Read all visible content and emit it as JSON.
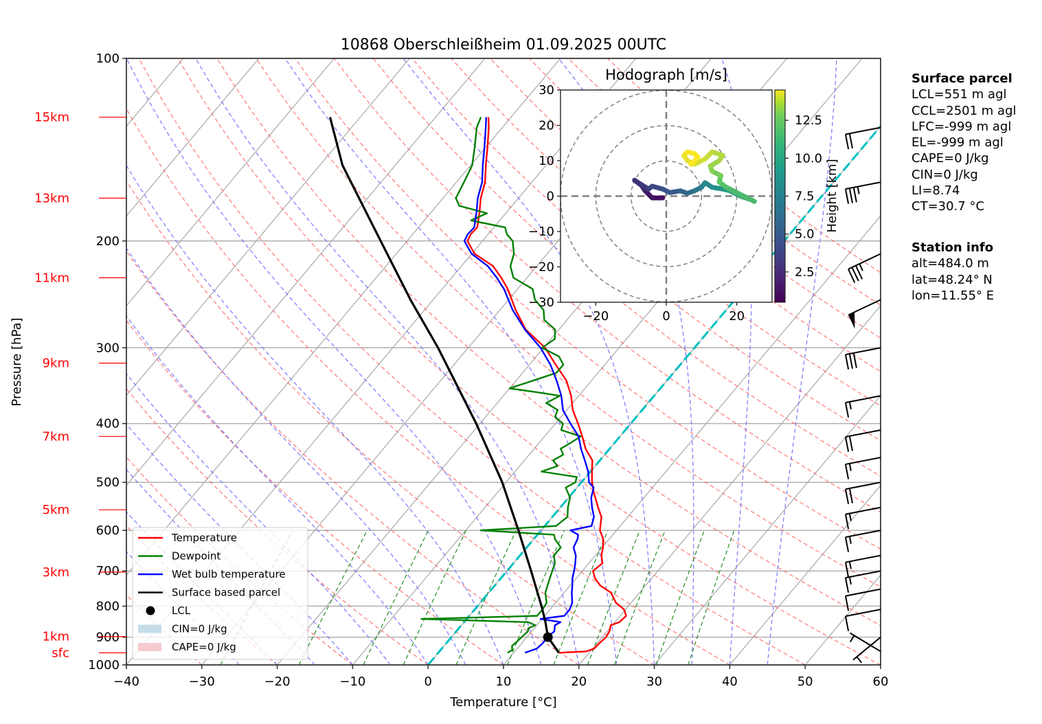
{
  "chart_data": {
    "type": "line",
    "subtype": "skew-t log-p diagram",
    "title": "10868 Oberschleißheim 01.09.2025 00UTC",
    "xlabel": "Temperature [°C]",
    "ylabel": "Pressure [hPa]",
    "xlim": [
      -40,
      60
    ],
    "ylim_hpa": [
      1000,
      100
    ],
    "x_ticks": [
      -40,
      -30,
      -20,
      -10,
      0,
      10,
      20,
      30,
      40,
      50,
      60
    ],
    "x_tick_labels": [
      "−40",
      "−30",
      "−20",
      "−10",
      "0",
      "10",
      "20",
      "30",
      "40",
      "50",
      "60"
    ],
    "y_ticks": [
      100,
      200,
      300,
      400,
      500,
      600,
      700,
      800,
      900,
      1000
    ],
    "y_tick_labels": [
      "100",
      "200",
      "300",
      "400",
      "500",
      "600",
      "700",
      "800",
      "900",
      "1000"
    ],
    "grid": true,
    "height_markers": [
      {
        "label": "15km",
        "p": 125
      },
      {
        "label": "13km",
        "p": 170
      },
      {
        "label": "11km",
        "p": 230
      },
      {
        "label": "9km",
        "p": 318
      },
      {
        "label": "7km",
        "p": 420
      },
      {
        "label": "5km",
        "p": 555
      },
      {
        "label": "3km",
        "p": 703
      },
      {
        "label": "1km",
        "p": 898
      },
      {
        "label": "sfc",
        "p": 955
      }
    ],
    "legend_position": "lower-left",
    "legend": [
      {
        "label": "Temperature",
        "kind": "line",
        "color": "#ff0000"
      },
      {
        "label": "Dewpoint",
        "kind": "line",
        "color": "#008000"
      },
      {
        "label": "Wet bulb temperature",
        "kind": "line",
        "color": "#0000ff"
      },
      {
        "label": "Surface based parcel",
        "kind": "line",
        "color": "#000000"
      },
      {
        "label": "LCL",
        "kind": "marker",
        "color": "#000000"
      },
      {
        "label": "CIN=0 J/kg",
        "kind": "patch",
        "color": "#c6dbe8"
      },
      {
        "label": "CAPE=0 J/kg",
        "kind": "patch",
        "color": "#f4cccf"
      }
    ],
    "series": [
      {
        "name": "Temperature",
        "color": "#ff0000",
        "points": [
          [
            955,
            16.0
          ],
          [
            950,
            19.5
          ],
          [
            940,
            20.2
          ],
          [
            920,
            20.3
          ],
          [
            900,
            20.5
          ],
          [
            880,
            20.3
          ],
          [
            860,
            19.8
          ],
          [
            850,
            20.6
          ],
          [
            830,
            20.8
          ],
          [
            810,
            19.8
          ],
          [
            790,
            18.0
          ],
          [
            760,
            16.2
          ],
          [
            740,
            14.0
          ],
          [
            720,
            12.5
          ],
          [
            700,
            11.4
          ],
          [
            680,
            11.8
          ],
          [
            660,
            10.8
          ],
          [
            640,
            10.1
          ],
          [
            620,
            9.2
          ],
          [
            600,
            7.8
          ],
          [
            570,
            6.5
          ],
          [
            550,
            5.0
          ],
          [
            520,
            2.8
          ],
          [
            500,
            1.4
          ],
          [
            480,
            0.2
          ],
          [
            460,
            -1.0
          ],
          [
            440,
            -3.2
          ],
          [
            420,
            -5.0
          ],
          [
            400,
            -7.0
          ],
          [
            380,
            -9.2
          ],
          [
            360,
            -11.0
          ],
          [
            340,
            -13.3
          ],
          [
            320,
            -16.5
          ],
          [
            300,
            -19.8
          ],
          [
            280,
            -24.4
          ],
          [
            260,
            -27.9
          ],
          [
            240,
            -31.3
          ],
          [
            230,
            -33.4
          ],
          [
            220,
            -35.8
          ],
          [
            210,
            -39.6
          ],
          [
            205,
            -40.8
          ],
          [
            200,
            -42.0
          ],
          [
            195,
            -42.3
          ],
          [
            190,
            -42.2
          ],
          [
            180,
            -43.5
          ],
          [
            170,
            -45.0
          ],
          [
            160,
            -46.2
          ],
          [
            150,
            -48.0
          ],
          [
            140,
            -49.8
          ],
          [
            130,
            -51.8
          ],
          [
            125,
            -53.0
          ]
        ]
      },
      {
        "name": "Dewpoint",
        "color": "#008000",
        "points": [
          [
            955,
            9.2
          ],
          [
            945,
            9.5
          ],
          [
            930,
            9.0
          ],
          [
            915,
            9.2
          ],
          [
            900,
            9.3
          ],
          [
            880,
            9.5
          ],
          [
            870,
            9.2
          ],
          [
            860,
            9.8
          ],
          [
            850,
            8.5
          ],
          [
            840,
            -6.0
          ],
          [
            830,
            9.0
          ],
          [
            810,
            9.0
          ],
          [
            790,
            8.8
          ],
          [
            760,
            7.5
          ],
          [
            740,
            7.0
          ],
          [
            720,
            6.5
          ],
          [
            700,
            6.0
          ],
          [
            680,
            5.5
          ],
          [
            660,
            4.5
          ],
          [
            640,
            4.5
          ],
          [
            620,
            2.8
          ],
          [
            610,
            2.2
          ],
          [
            600,
            -8.0
          ],
          [
            590,
            1.5
          ],
          [
            570,
            2.0
          ],
          [
            550,
            1.0
          ],
          [
            530,
            0.2
          ],
          [
            510,
            -1.5
          ],
          [
            500,
            -0.8
          ],
          [
            490,
            -1.2
          ],
          [
            480,
            -6.5
          ],
          [
            470,
            -5.0
          ],
          [
            460,
            -6.2
          ],
          [
            450,
            -5.5
          ],
          [
            440,
            -6.5
          ],
          [
            430,
            -5.8
          ],
          [
            420,
            -5.2
          ],
          [
            410,
            -8.5
          ],
          [
            400,
            -9.0
          ],
          [
            390,
            -10.8
          ],
          [
            380,
            -11.2
          ],
          [
            370,
            -13.5
          ],
          [
            360,
            -12.5
          ],
          [
            355,
            -16.0
          ],
          [
            350,
            -20.0
          ],
          [
            340,
            -17.8
          ],
          [
            330,
            -15.5
          ],
          [
            320,
            -15.5
          ],
          [
            310,
            -17.0
          ],
          [
            300,
            -20.2
          ],
          [
            290,
            -19.5
          ],
          [
            280,
            -20.5
          ],
          [
            270,
            -23.0
          ],
          [
            260,
            -24.2
          ],
          [
            250,
            -26.5
          ],
          [
            240,
            -28.0
          ],
          [
            230,
            -31.8
          ],
          [
            220,
            -33.5
          ],
          [
            210,
            -34.4
          ],
          [
            200,
            -36.0
          ],
          [
            195,
            -37.5
          ],
          [
            190,
            -38.5
          ],
          [
            185,
            -43.8
          ],
          [
            180,
            -42.5
          ],
          [
            175,
            -47.0
          ],
          [
            170,
            -48.3
          ],
          [
            160,
            -49.0
          ],
          [
            150,
            -49.8
          ],
          [
            140,
            -51.5
          ],
          [
            130,
            -53.4
          ],
          [
            125,
            -54.0
          ]
        ]
      },
      {
        "name": "Wet bulb temperature",
        "color": "#0000ff",
        "points": [
          [
            955,
            11.5
          ],
          [
            940,
            12.6
          ],
          [
            920,
            12.8
          ],
          [
            900,
            12.7
          ],
          [
            880,
            13.0
          ],
          [
            860,
            12.4
          ],
          [
            850,
            12.8
          ],
          [
            840,
            9.8
          ],
          [
            830,
            12.6
          ],
          [
            810,
            12.6
          ],
          [
            790,
            12.2
          ],
          [
            760,
            11.0
          ],
          [
            740,
            10.3
          ],
          [
            720,
            9.5
          ],
          [
            700,
            8.9
          ],
          [
            680,
            8.2
          ],
          [
            660,
            7.4
          ],
          [
            640,
            6.2
          ],
          [
            620,
            5.8
          ],
          [
            610,
            5.4
          ],
          [
            600,
            3.9
          ],
          [
            590,
            6.2
          ],
          [
            570,
            5.5
          ],
          [
            550,
            4.2
          ],
          [
            530,
            3.0
          ],
          [
            510,
            2.2
          ],
          [
            500,
            1.0
          ],
          [
            480,
            -0.3
          ],
          [
            460,
            -2.0
          ],
          [
            440,
            -3.8
          ],
          [
            420,
            -5.5
          ],
          [
            400,
            -8.0
          ],
          [
            380,
            -10.5
          ],
          [
            360,
            -12.3
          ],
          [
            340,
            -14.6
          ],
          [
            320,
            -17.2
          ],
          [
            300,
            -20.4
          ],
          [
            280,
            -24.5
          ],
          [
            260,
            -28.3
          ],
          [
            240,
            -31.8
          ],
          [
            230,
            -34.0
          ],
          [
            220,
            -36.5
          ],
          [
            210,
            -40.0
          ],
          [
            205,
            -41.2
          ],
          [
            200,
            -42.4
          ],
          [
            195,
            -42.7
          ],
          [
            190,
            -42.6
          ],
          [
            180,
            -43.9
          ],
          [
            170,
            -45.4
          ],
          [
            160,
            -46.6
          ],
          [
            150,
            -48.4
          ],
          [
            140,
            -50.2
          ],
          [
            130,
            -52.2
          ],
          [
            125,
            -53.3
          ]
        ]
      },
      {
        "name": "Surface based parcel",
        "color": "#000000",
        "points": [
          [
            955,
            16.0
          ],
          [
            900,
            12.8
          ],
          [
            850,
            10.8
          ],
          [
            800,
            8.5
          ],
          [
            700,
            3.2
          ],
          [
            600,
            -3.0
          ],
          [
            500,
            -10.5
          ],
          [
            400,
            -20.5
          ],
          [
            300,
            -34.0
          ],
          [
            250,
            -43.0
          ],
          [
            200,
            -53.5
          ],
          [
            150,
            -67.0
          ],
          [
            125,
            -74.0
          ]
        ]
      }
    ],
    "lcl_point": {
      "p": 900,
      "t": 12.8
    },
    "freezing_level_line": {
      "t": 0,
      "color": "#00c0c0"
    },
    "hodograph": {
      "title": "Hodograph [m/s]",
      "xlim": [
        -30,
        30
      ],
      "ylim": [
        -30,
        30
      ],
      "x_ticks": [
        -20,
        0,
        20
      ],
      "x_tick_labels": [
        "−20",
        "0",
        "20"
      ],
      "y_ticks": [
        30,
        20,
        10,
        0,
        -10,
        -20,
        -30
      ],
      "y_tick_labels": [
        "30",
        "20",
        "10",
        "0",
        "−10",
        "−20",
        "−30"
      ],
      "rings": [
        10,
        20,
        30
      ],
      "colorbar": {
        "label": "Height [km]",
        "ticks": [
          2.5,
          5.0,
          7.5,
          10.0,
          12.5
        ],
        "tick_labels": [
          "2.5",
          "5.0",
          "7.5",
          "10.0",
          "12.5"
        ],
        "range": [
          0.5,
          14.5
        ],
        "colormap": "viridis"
      },
      "trace": [
        [
          -1,
          -0.5,
          0.5
        ],
        [
          -4,
          -0.5,
          1.0
        ],
        [
          -6,
          1.5,
          1.5
        ],
        [
          -7,
          3,
          2.0
        ],
        [
          -9,
          4.5,
          2.3
        ],
        [
          -7,
          3.2,
          2.6
        ],
        [
          -5,
          2.0,
          2.9
        ],
        [
          -4,
          2.8,
          3.2
        ],
        [
          -1,
          2.0,
          3.5
        ],
        [
          1,
          1.0,
          4.0
        ],
        [
          4,
          1.5,
          4.5
        ],
        [
          6,
          0.8,
          5.0
        ],
        [
          8,
          1.5,
          5.5
        ],
        [
          10,
          2.5,
          6.0
        ],
        [
          11,
          3.8,
          6.5
        ],
        [
          13,
          2.5,
          7.0
        ],
        [
          16,
          2.0,
          7.5
        ],
        [
          18,
          1.5,
          8.0
        ],
        [
          21,
          0,
          8.5
        ],
        [
          24,
          -1,
          9.0
        ],
        [
          25,
          -1.5,
          9.5
        ],
        [
          17,
          2.5,
          10.0
        ],
        [
          15,
          4,
          10.5
        ],
        [
          15.5,
          5.8,
          11.0
        ],
        [
          13,
          7,
          11.5
        ],
        [
          12.5,
          8.5,
          12.0
        ],
        [
          15,
          10,
          12.3
        ],
        [
          16,
          11.5,
          12.6
        ],
        [
          13,
          12.5,
          12.9
        ],
        [
          11,
          10.5,
          13.2
        ],
        [
          8,
          9,
          13.5
        ],
        [
          6,
          10,
          13.8
        ],
        [
          5,
          11.5,
          14.0
        ],
        [
          6,
          12.5,
          14.2
        ],
        [
          8,
          12,
          14.4
        ],
        [
          9,
          11,
          14.5
        ],
        [
          7,
          9,
          14.6
        ]
      ]
    },
    "wind_barbs": [
      {
        "p": 130,
        "kind": "half-barb",
        "speed_kt": 20
      },
      {
        "p": 160,
        "speed_kt": 35
      },
      {
        "p": 210,
        "speed_kt": 35
      },
      {
        "p": 250,
        "speed_kt": 50
      },
      {
        "p": 300,
        "speed_kt": 30
      },
      {
        "p": 360,
        "speed_kt": 15
      },
      {
        "p": 410,
        "speed_kt": 20
      },
      {
        "p": 455,
        "speed_kt": 15
      },
      {
        "p": 500,
        "speed_kt": 20
      },
      {
        "p": 550,
        "speed_kt": 15
      },
      {
        "p": 600,
        "speed_kt": 15
      },
      {
        "p": 660,
        "speed_kt": 15
      },
      {
        "p": 700,
        "speed_kt": 15
      },
      {
        "p": 750,
        "speed_kt": 10
      },
      {
        "p": 810,
        "speed_kt": 10
      },
      {
        "p": 900,
        "speed_kt": 5
      },
      {
        "p": 950,
        "speed_kt": 5
      }
    ]
  },
  "surface_parcel": {
    "header": "Surface parcel",
    "lines": [
      "LCL=551 m agl",
      "CCL=2501 m agl",
      "LFC=-999 m agl",
      "EL=-999 m agl",
      "CAPE=0 J/kg",
      "CIN=0 J/kg",
      "LI=8.74",
      "CT=30.7 °C"
    ]
  },
  "station_info": {
    "header": "Station info",
    "lines": [
      "alt=484.0 m",
      "lat=48.24° N",
      "lon=11.55° E"
    ]
  }
}
